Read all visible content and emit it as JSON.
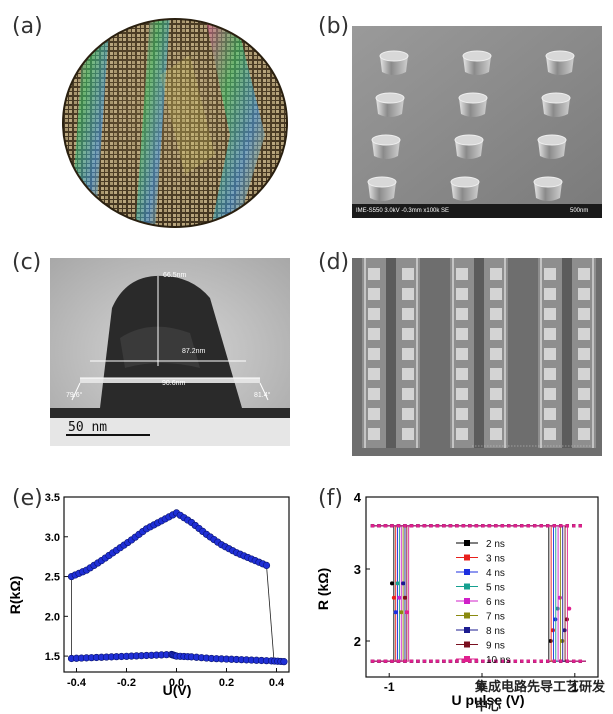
{
  "labels": {
    "a": "(a)",
    "b": "(b)",
    "c": "(c)",
    "d": "(d)",
    "e": "(e)",
    "f": "(f)"
  },
  "panel_b": {
    "sem_info": "IME-S550 3.0kV -0.3mm x100k SE",
    "scale": "500nm"
  },
  "panel_c": {
    "height_label": "66.5nm",
    "top_width_label": "87.2nm",
    "bottom_width_label": "90.6nm",
    "left_angle": "79.6°",
    "right_angle": "81.4°",
    "scale_bar": "50 nm"
  },
  "watermark": "集成电路先导工艺研发中心",
  "colors": {
    "blue_marker": "#1f2fd6",
    "pink_marker": "#e0208f"
  },
  "chart_data": [
    {
      "type": "scatter",
      "panel": "e",
      "xlabel": "U(V)",
      "ylabel": "R(kΩ)",
      "xlim": [
        -0.45,
        0.45
      ],
      "ylim": [
        1.3,
        3.5
      ],
      "xticks": [
        "-0.4",
        "-0.2",
        "0.0",
        "0.2",
        "0.4"
      ],
      "yticks": [
        "1.5",
        "2.0",
        "2.5",
        "3.0",
        "3.5"
      ],
      "series": [
        {
          "x": [
            -0.42,
            -0.36,
            -0.3,
            -0.24,
            -0.18,
            -0.12,
            -0.06,
            0.0,
            0.06,
            0.12,
            0.18,
            0.24,
            0.3,
            0.36
          ],
          "y": [
            2.5,
            2.58,
            2.7,
            2.83,
            2.96,
            3.1,
            3.2,
            3.3,
            3.18,
            3.03,
            2.9,
            2.8,
            2.72,
            2.64
          ]
        },
        {
          "x": [
            -0.42,
            -0.34,
            -0.26,
            -0.18,
            -0.1,
            -0.02,
            0.0,
            0.06,
            0.14,
            0.22,
            0.3,
            0.38,
            0.43
          ],
          "y": [
            1.47,
            1.48,
            1.49,
            1.5,
            1.51,
            1.52,
            1.5,
            1.49,
            1.47,
            1.46,
            1.45,
            1.44,
            1.43
          ]
        }
      ]
    },
    {
      "type": "line",
      "panel": "f",
      "xlabel": "U pulse (V)",
      "ylabel": "R (kΩ)",
      "xticks": [
        "-1",
        "0",
        "1"
      ],
      "yticks": [
        "2",
        "3",
        "4"
      ],
      "ylim": [
        1.5,
        4.0
      ],
      "legend_position": "center",
      "series": [
        {
          "name": "2 ns",
          "color": "#000000",
          "marker": "square"
        },
        {
          "name": "3 ns",
          "color": "#e8201c",
          "marker": "circle"
        },
        {
          "name": "4 ns",
          "color": "#1c2fe0",
          "marker": "triangle-up"
        },
        {
          "name": "5 ns",
          "color": "#16a090",
          "marker": "triangle-down"
        },
        {
          "name": "6 ns",
          "color": "#d020c8",
          "marker": "triangle-left"
        },
        {
          "name": "7 ns",
          "color": "#8a8a10",
          "marker": "triangle-right"
        },
        {
          "name": "8 ns",
          "color": "#1c1c90",
          "marker": "diamond"
        },
        {
          "name": "9 ns",
          "color": "#7a1020",
          "marker": "hexagon"
        },
        {
          "name": "10 ns",
          "color": "#e0208f",
          "marker": "circle"
        }
      ],
      "high_state": 3.6,
      "low_state": 1.72
    }
  ]
}
